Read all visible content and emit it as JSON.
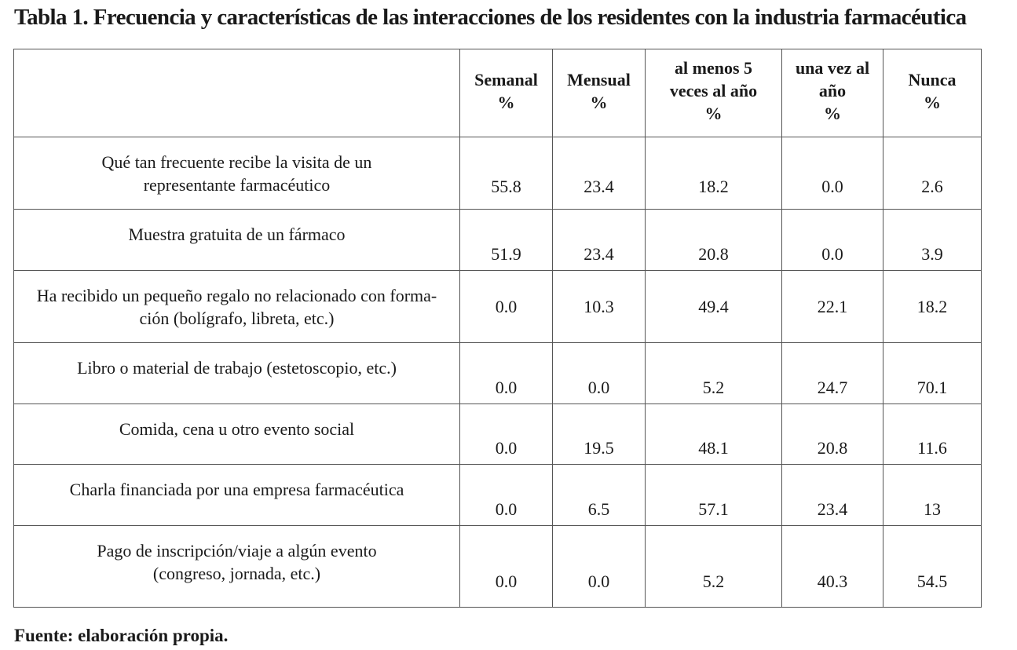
{
  "title": "Tabla 1. Frecuencia y características de las interacciones de los residentes con la industria farmacéutica",
  "table": {
    "headers": [
      {
        "line1": "Semanal",
        "line2": "%",
        "line3": ""
      },
      {
        "line1": "Mensual",
        "line2": "%",
        "line3": ""
      },
      {
        "line1": "al menos 5",
        "line2": "veces al año",
        "line3": "%"
      },
      {
        "line1": "una vez al",
        "line2": "año",
        "line3": "%"
      },
      {
        "line1": "Nunca",
        "line2": "%",
        "line3": ""
      }
    ],
    "rows": [
      {
        "label1": "Qué tan frecuente recibe la visita de un",
        "label2": "representante farmacéutico",
        "values": [
          "55.8",
          "23.4",
          "18.2",
          "0.0",
          "2.6"
        ]
      },
      {
        "label1": "Muestra gratuita de un fármaco",
        "label2": "",
        "values": [
          "51.9",
          "23.4",
          "20.8",
          "0.0",
          "3.9"
        ]
      },
      {
        "label1": "Ha recibido un pequeño regalo no relacionado con forma-",
        "label2": "ción (bolígrafo, libreta, etc.)",
        "values": [
          "0.0",
          "10.3",
          "49.4",
          "22.1",
          "18.2"
        ]
      },
      {
        "label1": "Libro o material de trabajo (estetoscopio, etc.)",
        "label2": "",
        "values": [
          "0.0",
          "0.0",
          "5.2",
          "24.7",
          "70.1"
        ]
      },
      {
        "label1": "Comida, cena u otro evento social",
        "label2": "",
        "values": [
          "0.0",
          "19.5",
          "48.1",
          "20.8",
          "11.6"
        ]
      },
      {
        "label1": "Charla financiada por una empresa farmacéutica",
        "label2": "",
        "values": [
          "0.0",
          "6.5",
          "57.1",
          "23.4",
          "13"
        ]
      },
      {
        "label1": "Pago de inscripción/viaje a algún evento",
        "label2": "(congreso, jornada, etc.)",
        "values": [
          "0.0",
          "0.0",
          "5.2",
          "40.3",
          "54.5"
        ]
      }
    ]
  },
  "source": "Fuente: elaboración propia."
}
